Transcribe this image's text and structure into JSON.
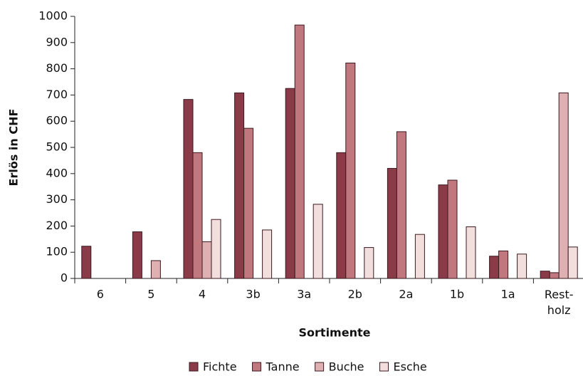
{
  "chart_data": {
    "type": "bar",
    "x_label": "Sortimente",
    "y_label": "Erlös in CHF",
    "categories": [
      "6",
      "5",
      "4",
      "3b",
      "3a",
      "2b",
      "2a",
      "1b",
      "1a",
      "Rest-\nholz"
    ],
    "series": [
      {
        "name": "Fichte",
        "color": "#8b3a48",
        "values": [
          123,
          178,
          683,
          708,
          725,
          480,
          420,
          357,
          85,
          28
        ]
      },
      {
        "name": "Tanne",
        "color": "#c0787e",
        "values": [
          0,
          0,
          480,
          573,
          967,
          822,
          560,
          375,
          105,
          22
        ]
      },
      {
        "name": "Buche",
        "color": "#deb0b2",
        "values": [
          0,
          68,
          140,
          0,
          0,
          0,
          0,
          0,
          0,
          708
        ]
      },
      {
        "name": "Esche",
        "color": "#f3dede",
        "values": [
          0,
          0,
          225,
          185,
          283,
          118,
          168,
          197,
          93,
          120
        ]
      }
    ],
    "ylim": [
      0,
      1000
    ],
    "yticks": [
      0,
      100,
      200,
      300,
      400,
      500,
      600,
      700,
      800,
      900,
      1000
    ],
    "legend": "bottom"
  }
}
